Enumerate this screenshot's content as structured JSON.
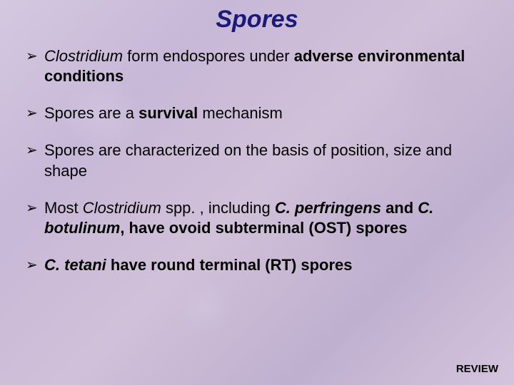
{
  "slide": {
    "title": "Spores",
    "title_color": "#1a1a7a",
    "title_fontsize": 34,
    "background_colors": [
      "#d4c8e0",
      "#c8b8d8",
      "#d0c0d8",
      "#c0b0d0",
      "#d4c4dc"
    ],
    "text_color": "#000000",
    "body_fontsize": 22,
    "bullet_marker": "➢",
    "bullets": [
      {
        "segments": [
          {
            "text": "Clostridium",
            "style": "italic"
          },
          {
            "text": " form endospores under ",
            "style": "plain"
          },
          {
            "text": "adverse environmental conditions",
            "style": "bold"
          }
        ]
      },
      {
        "segments": [
          {
            "text": "Spores are a ",
            "style": "plain"
          },
          {
            "text": "survival",
            "style": "bold"
          },
          {
            "text": " mechanism",
            "style": "plain"
          }
        ]
      },
      {
        "segments": [
          {
            "text": "Spores are characterized on the basis of position, size and shape",
            "style": "plain"
          }
        ]
      },
      {
        "segments": [
          {
            "text": "Most ",
            "style": "plain"
          },
          {
            "text": "Clostridium",
            "style": "italic"
          },
          {
            "text": " spp. , including ",
            "style": "plain"
          },
          {
            "text": "C. perfringens",
            "style": "bolditalic"
          },
          {
            "text": " and ",
            "style": "bold"
          },
          {
            "text": "C. botulinum",
            "style": "bolditalic"
          },
          {
            "text": ", have ovoid subterminal (OST) spores",
            "style": "bold"
          }
        ]
      },
      {
        "segments": [
          {
            "text": "C. tetani",
            "style": "bolditalic"
          },
          {
            "text": " have round terminal (RT) spores",
            "style": "bold"
          }
        ]
      }
    ],
    "footer": "REVIEW",
    "footer_fontsize": 15
  }
}
